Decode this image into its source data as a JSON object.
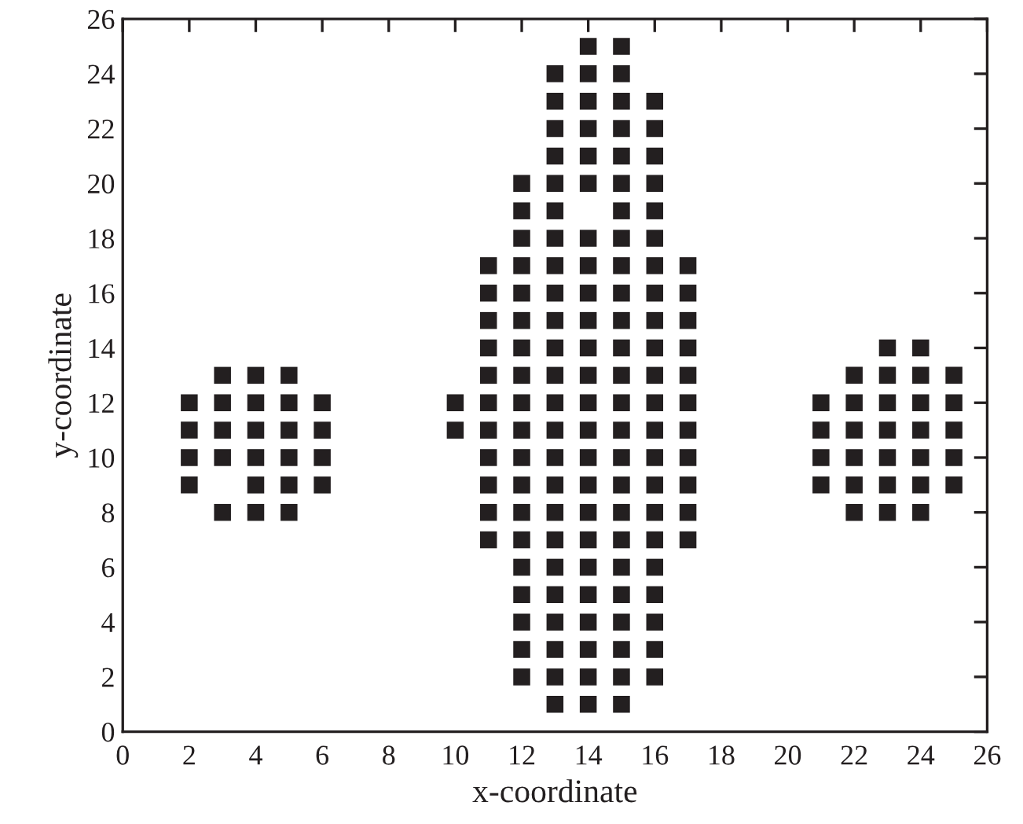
{
  "chart_data": {
    "type": "scatter",
    "xlabel": "x-coordinate",
    "ylabel": "y-coordinate",
    "xlim": [
      0,
      26
    ],
    "ylim": [
      0,
      26
    ],
    "xticks": [
      0,
      2,
      4,
      6,
      8,
      10,
      12,
      14,
      16,
      18,
      20,
      22,
      24,
      26
    ],
    "yticks": [
      0,
      2,
      4,
      6,
      8,
      10,
      12,
      14,
      16,
      18,
      20,
      22,
      24,
      26
    ],
    "grid": false,
    "marker": "square",
    "series": [
      {
        "color": "#231f20",
        "x": [
          14,
          15,
          13,
          14,
          15,
          13,
          14,
          15,
          16,
          13,
          14,
          15,
          16,
          13,
          14,
          15,
          16,
          12,
          13,
          14,
          15,
          16,
          12,
          13,
          15,
          16,
          12,
          13,
          14,
          15,
          16,
          11,
          12,
          13,
          14,
          15,
          16,
          17,
          11,
          12,
          13,
          14,
          15,
          16,
          17,
          11,
          12,
          13,
          14,
          15,
          16,
          17,
          11,
          12,
          13,
          14,
          15,
          16,
          17,
          23,
          24,
          3,
          4,
          5,
          11,
          12,
          13,
          14,
          15,
          16,
          17,
          22,
          23,
          24,
          25,
          2,
          3,
          4,
          5,
          6,
          10,
          11,
          12,
          13,
          14,
          15,
          16,
          17,
          21,
          22,
          23,
          24,
          25,
          2,
          3,
          4,
          5,
          6,
          10,
          11,
          12,
          13,
          14,
          15,
          16,
          17,
          21,
          22,
          23,
          24,
          25,
          2,
          3,
          4,
          5,
          6,
          11,
          12,
          13,
          14,
          15,
          16,
          17,
          21,
          22,
          23,
          24,
          25,
          2,
          4,
          5,
          6,
          11,
          12,
          13,
          14,
          15,
          16,
          17,
          21,
          22,
          23,
          24,
          25,
          3,
          4,
          5,
          11,
          12,
          13,
          14,
          15,
          16,
          17,
          22,
          23,
          24,
          11,
          12,
          13,
          14,
          15,
          16,
          17,
          12,
          13,
          14,
          15,
          16,
          12,
          13,
          14,
          15,
          16,
          12,
          13,
          14,
          15,
          16,
          12,
          13,
          14,
          15,
          16,
          12,
          13,
          14,
          15,
          16,
          13,
          14,
          15
        ],
        "values": [
          25,
          25,
          24,
          24,
          24,
          23,
          23,
          23,
          23,
          22,
          22,
          22,
          22,
          21,
          21,
          21,
          21,
          20,
          20,
          20,
          20,
          20,
          19,
          19,
          19,
          19,
          18,
          18,
          18,
          18,
          18,
          17,
          17,
          17,
          17,
          17,
          17,
          17,
          16,
          16,
          16,
          16,
          16,
          16,
          16,
          15,
          15,
          15,
          15,
          15,
          15,
          15,
          14,
          14,
          14,
          14,
          14,
          14,
          14,
          14,
          14,
          13,
          13,
          13,
          13,
          13,
          13,
          13,
          13,
          13,
          13,
          13,
          13,
          13,
          13,
          12,
          12,
          12,
          12,
          12,
          12,
          12,
          12,
          12,
          12,
          12,
          12,
          12,
          12,
          12,
          12,
          12,
          12,
          11,
          11,
          11,
          11,
          11,
          11,
          11,
          11,
          11,
          11,
          11,
          11,
          11,
          11,
          11,
          11,
          11,
          11,
          10,
          10,
          10,
          10,
          10,
          10,
          10,
          10,
          10,
          10,
          10,
          10,
          10,
          10,
          10,
          10,
          10,
          9,
          9,
          9,
          9,
          9,
          9,
          9,
          9,
          9,
          9,
          9,
          9,
          9,
          9,
          9,
          9,
          8,
          8,
          8,
          8,
          8,
          8,
          8,
          8,
          8,
          8,
          8,
          8,
          8,
          7,
          7,
          7,
          7,
          7,
          7,
          7,
          6,
          6,
          6,
          6,
          6,
          5,
          5,
          5,
          5,
          5,
          4,
          4,
          4,
          4,
          4,
          3,
          3,
          3,
          3,
          3,
          2,
          2,
          2,
          2,
          2,
          1,
          1,
          1
        ]
      }
    ]
  }
}
